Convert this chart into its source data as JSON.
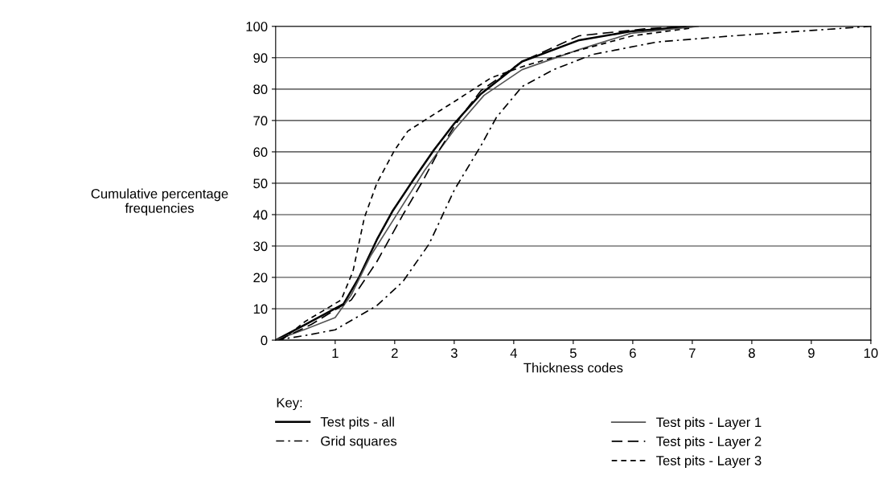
{
  "chart_data": {
    "type": "line",
    "xlabel": "Thickness codes",
    "ylabel": "Cumulative percentage\nfrequencies",
    "legend_title": "Key:",
    "xlim": [
      0,
      10
    ],
    "xticks": [
      1,
      2,
      3,
      4,
      5,
      6,
      7,
      8,
      9,
      10
    ],
    "ylim": [
      0,
      100
    ],
    "yticks": [
      0,
      10,
      20,
      30,
      40,
      50,
      60,
      70,
      80,
      90,
      100
    ],
    "grid": "y",
    "legend": "bottom",
    "marker": "none",
    "series": [
      {
        "name": "Test pits - all",
        "color": "#000000",
        "line_style": "solid",
        "x": [
          0,
          0.5,
          1.14,
          1.4,
          1.7,
          1.96,
          2.31,
          2.66,
          3.0,
          3.45,
          4.14,
          5.1,
          6.0,
          7.0
        ],
        "values": [
          0,
          5,
          11.5,
          20,
          32,
          41,
          51,
          60.6,
          69,
          78.5,
          88.8,
          95.6,
          98.5,
          100
        ]
      },
      {
        "name": "Grid squares",
        "color": "#000000",
        "line_style": "dashdot",
        "x": [
          0,
          0.5,
          1.0,
          1.7,
          2.14,
          2.58,
          3.0,
          3.45,
          3.71,
          4.14,
          4.67,
          5.32,
          6.4,
          7.7,
          9.0,
          10
        ],
        "values": [
          0,
          1.5,
          3.3,
          11,
          18.7,
          30.7,
          47.8,
          62,
          71,
          80.8,
          86.2,
          91,
          95,
          97,
          98.7,
          100
        ]
      },
      {
        "name": "Test pits - Layer 1",
        "color": "#555555",
        "line_style": "solid",
        "x": [
          0,
          0.5,
          1.0,
          1.27,
          1.6,
          2.0,
          2.5,
          3.0,
          3.5,
          4.14,
          5.1,
          5.97,
          7.1
        ],
        "values": [
          0,
          3.5,
          7.2,
          14.4,
          27,
          39,
          54,
          67,
          78,
          86.2,
          92.6,
          97.8,
          100
        ]
      },
      {
        "name": "Test pits - Layer 2",
        "color": "#000000",
        "line_style": "dashed",
        "x": [
          0.05,
          0.6,
          1.27,
          1.7,
          2.14,
          2.48,
          2.75,
          3.1,
          3.45,
          4.14,
          5.1,
          6.2,
          6.9
        ],
        "values": [
          0,
          5,
          12.8,
          25,
          40,
          51,
          60.6,
          71,
          79.5,
          88.8,
          97,
          99.2,
          100
        ]
      },
      {
        "name": "Test pits - Layer 3",
        "color": "#000000",
        "line_style": "dotted",
        "x": [
          0.1,
          0.5,
          1.1,
          1.3,
          1.49,
          1.7,
          2.0,
          2.22,
          2.58,
          3.0,
          3.62,
          4.2,
          5.02,
          6.0,
          7.0
        ],
        "values": [
          0,
          6,
          12.8,
          22,
          39,
          50,
          60.6,
          66.6,
          71,
          76,
          83.6,
          87.5,
          92,
          97,
          99.5
        ]
      }
    ]
  }
}
